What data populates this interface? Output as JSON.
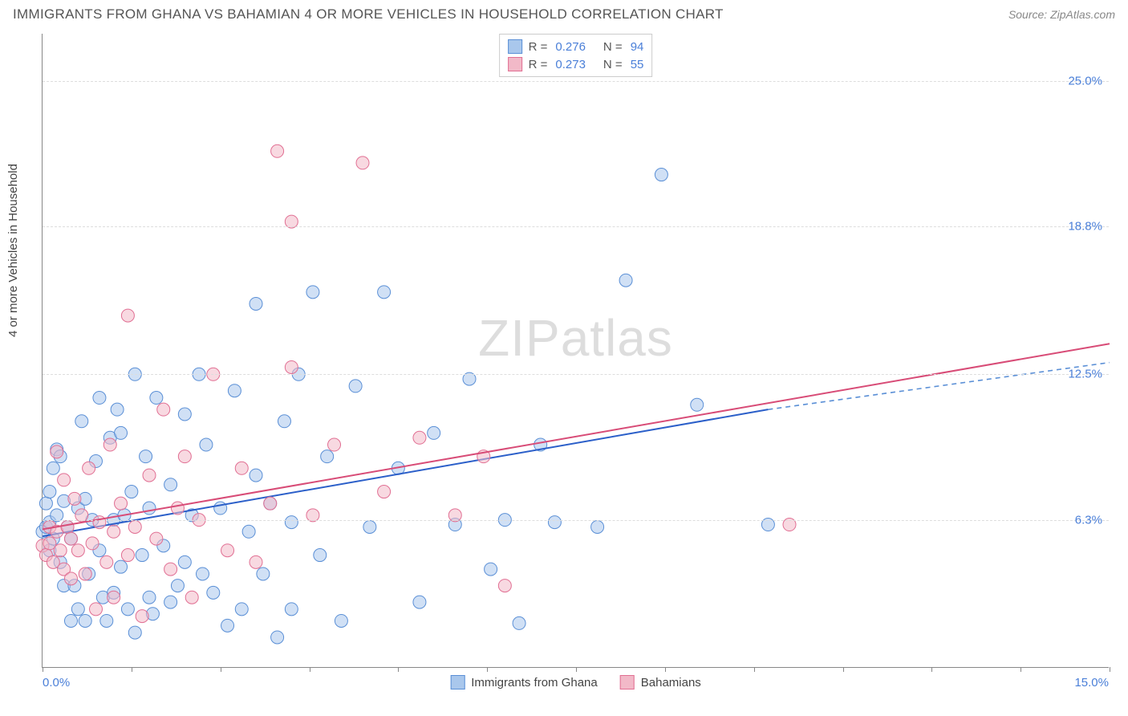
{
  "title": "IMMIGRANTS FROM GHANA VS BAHAMIAN 4 OR MORE VEHICLES IN HOUSEHOLD CORRELATION CHART",
  "source": "Source: ZipAtlas.com",
  "ylabel": "4 or more Vehicles in Household",
  "watermark_a": "ZIP",
  "watermark_b": "atlas",
  "chart": {
    "type": "scatter",
    "xlim": [
      0,
      15
    ],
    "ylim": [
      0,
      27
    ],
    "x_left_label": "0.0%",
    "x_right_label": "15.0%",
    "y_gridlines": [
      6.3,
      12.5,
      18.8,
      25.0
    ],
    "y_grid_labels": [
      "6.3%",
      "12.5%",
      "18.8%",
      "25.0%"
    ],
    "x_ticks": [
      0,
      1.25,
      2.5,
      3.75,
      5,
      6.25,
      7.5,
      8.75,
      10,
      11.25,
      12.5,
      13.75,
      15
    ],
    "grid_color": "#dddddd",
    "axis_color": "#888888",
    "bg": "#ffffff",
    "series": [
      {
        "name": "Immigrants from Ghana",
        "fill": "#a9c7ec",
        "stroke": "#5a8fd6",
        "fill_opacity": 0.55,
        "marker_r": 8,
        "R": "0.276",
        "N": "94",
        "trend": {
          "x1": 0,
          "y1": 5.6,
          "x2": 10.2,
          "y2": 11.0,
          "color": "#2b5fc9",
          "width": 2
        },
        "trend_ext": {
          "x1": 10.2,
          "y1": 11.0,
          "x2": 15,
          "y2": 13.0,
          "color": "#5a8fd6",
          "dash": "6,5",
          "width": 1.6
        },
        "points": [
          [
            0.0,
            5.8
          ],
          [
            0.05,
            7.0
          ],
          [
            0.05,
            6.0
          ],
          [
            0.1,
            6.2
          ],
          [
            0.1,
            7.5
          ],
          [
            0.1,
            5.0
          ],
          [
            0.15,
            8.5
          ],
          [
            0.15,
            5.5
          ],
          [
            0.2,
            6.5
          ],
          [
            0.2,
            9.3
          ],
          [
            0.25,
            9.0
          ],
          [
            0.25,
            4.5
          ],
          [
            0.3,
            7.1
          ],
          [
            0.3,
            3.5
          ],
          [
            0.35,
            6.0
          ],
          [
            0.4,
            5.5
          ],
          [
            0.4,
            2.0
          ],
          [
            0.45,
            3.5
          ],
          [
            0.5,
            6.8
          ],
          [
            0.5,
            2.5
          ],
          [
            0.55,
            10.5
          ],
          [
            0.6,
            2.0
          ],
          [
            0.6,
            7.2
          ],
          [
            0.65,
            4.0
          ],
          [
            0.7,
            6.3
          ],
          [
            0.75,
            8.8
          ],
          [
            0.8,
            11.5
          ],
          [
            0.8,
            5.0
          ],
          [
            0.85,
            3.0
          ],
          [
            0.9,
            2.0
          ],
          [
            0.95,
            9.8
          ],
          [
            1.0,
            6.3
          ],
          [
            1.0,
            3.2
          ],
          [
            1.05,
            11.0
          ],
          [
            1.1,
            10.0
          ],
          [
            1.1,
            4.3
          ],
          [
            1.15,
            6.5
          ],
          [
            1.2,
            2.5
          ],
          [
            1.25,
            7.5
          ],
          [
            1.3,
            12.5
          ],
          [
            1.3,
            1.5
          ],
          [
            1.4,
            4.8
          ],
          [
            1.45,
            9.0
          ],
          [
            1.5,
            6.8
          ],
          [
            1.5,
            3.0
          ],
          [
            1.55,
            2.3
          ],
          [
            1.6,
            11.5
          ],
          [
            1.7,
            5.2
          ],
          [
            1.8,
            7.8
          ],
          [
            1.8,
            2.8
          ],
          [
            1.9,
            3.5
          ],
          [
            2.0,
            10.8
          ],
          [
            2.0,
            4.5
          ],
          [
            2.1,
            6.5
          ],
          [
            2.2,
            12.5
          ],
          [
            2.25,
            4.0
          ],
          [
            2.3,
            9.5
          ],
          [
            2.4,
            3.2
          ],
          [
            2.5,
            6.8
          ],
          [
            2.6,
            1.8
          ],
          [
            2.7,
            11.8
          ],
          [
            2.8,
            2.5
          ],
          [
            2.9,
            5.8
          ],
          [
            3.0,
            8.2
          ],
          [
            3.0,
            15.5
          ],
          [
            3.1,
            4.0
          ],
          [
            3.2,
            7.0
          ],
          [
            3.3,
            1.3
          ],
          [
            3.4,
            10.5
          ],
          [
            3.5,
            6.2
          ],
          [
            3.5,
            2.5
          ],
          [
            3.6,
            12.5
          ],
          [
            3.8,
            16.0
          ],
          [
            3.9,
            4.8
          ],
          [
            4.0,
            9.0
          ],
          [
            4.2,
            2.0
          ],
          [
            4.4,
            12.0
          ],
          [
            4.6,
            6.0
          ],
          [
            4.8,
            16.0
          ],
          [
            5.0,
            8.5
          ],
          [
            5.3,
            2.8
          ],
          [
            5.5,
            10.0
          ],
          [
            5.8,
            6.1
          ],
          [
            6.0,
            12.3
          ],
          [
            6.3,
            4.2
          ],
          [
            6.5,
            6.3
          ],
          [
            6.7,
            1.9
          ],
          [
            7.0,
            9.5
          ],
          [
            7.2,
            6.2
          ],
          [
            7.8,
            6.0
          ],
          [
            8.2,
            16.5
          ],
          [
            8.7,
            21.0
          ],
          [
            9.2,
            11.2
          ],
          [
            10.2,
            6.1
          ]
        ]
      },
      {
        "name": "Bahamians",
        "fill": "#f2b9c8",
        "stroke": "#e16f93",
        "fill_opacity": 0.55,
        "marker_r": 8,
        "R": "0.273",
        "N": "55",
        "trend": {
          "x1": 0,
          "y1": 5.9,
          "x2": 15,
          "y2": 13.8,
          "color": "#d84c77",
          "width": 2
        },
        "points": [
          [
            0.0,
            5.2
          ],
          [
            0.05,
            4.8
          ],
          [
            0.1,
            6.0
          ],
          [
            0.1,
            5.3
          ],
          [
            0.15,
            4.5
          ],
          [
            0.2,
            5.8
          ],
          [
            0.2,
            9.2
          ],
          [
            0.25,
            5.0
          ],
          [
            0.3,
            4.2
          ],
          [
            0.3,
            8.0
          ],
          [
            0.35,
            6.0
          ],
          [
            0.4,
            5.5
          ],
          [
            0.4,
            3.8
          ],
          [
            0.45,
            7.2
          ],
          [
            0.5,
            5.0
          ],
          [
            0.55,
            6.5
          ],
          [
            0.6,
            4.0
          ],
          [
            0.65,
            8.5
          ],
          [
            0.7,
            5.3
          ],
          [
            0.75,
            2.5
          ],
          [
            0.8,
            6.2
          ],
          [
            0.9,
            4.5
          ],
          [
            0.95,
            9.5
          ],
          [
            1.0,
            5.8
          ],
          [
            1.0,
            3.0
          ],
          [
            1.1,
            7.0
          ],
          [
            1.2,
            15.0
          ],
          [
            1.2,
            4.8
          ],
          [
            1.3,
            6.0
          ],
          [
            1.4,
            2.2
          ],
          [
            1.5,
            8.2
          ],
          [
            1.6,
            5.5
          ],
          [
            1.7,
            11.0
          ],
          [
            1.8,
            4.2
          ],
          [
            1.9,
            6.8
          ],
          [
            2.0,
            9.0
          ],
          [
            2.1,
            3.0
          ],
          [
            2.2,
            6.3
          ],
          [
            2.4,
            12.5
          ],
          [
            2.6,
            5.0
          ],
          [
            2.8,
            8.5
          ],
          [
            3.0,
            4.5
          ],
          [
            3.2,
            7.0
          ],
          [
            3.3,
            22.0
          ],
          [
            3.5,
            19.0
          ],
          [
            3.5,
            12.8
          ],
          [
            3.8,
            6.5
          ],
          [
            4.1,
            9.5
          ],
          [
            4.5,
            21.5
          ],
          [
            4.8,
            7.5
          ],
          [
            5.3,
            9.8
          ],
          [
            5.8,
            6.5
          ],
          [
            6.5,
            3.5
          ],
          [
            6.2,
            9.0
          ],
          [
            10.5,
            6.1
          ]
        ]
      }
    ]
  }
}
